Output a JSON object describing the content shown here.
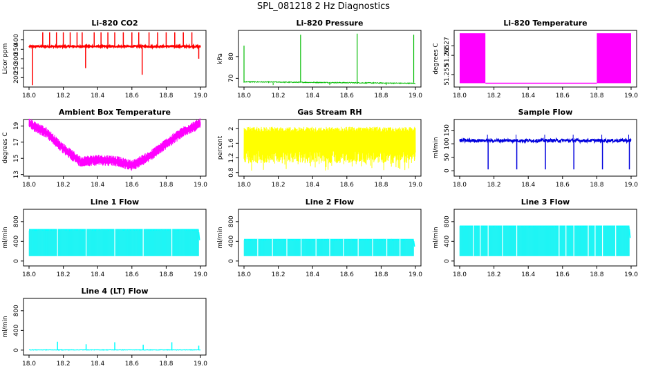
{
  "figure": {
    "title": "SPL_081218  2 Hz Diagnostics"
  },
  "chart_data": [
    {
      "type": "line",
      "title": "Li-820 CO2",
      "ylabel": "Licor ppm",
      "color": "#ff0000",
      "xlim": [
        18.0,
        19.0
      ],
      "ylim": [
        150,
        450
      ],
      "xticks": [
        "18.0",
        "18.2",
        "18.4",
        "18.6",
        "18.8",
        "19.0"
      ],
      "yticks": [
        200,
        250,
        300,
        350,
        400
      ],
      "series": [
        {
          "name": "co2",
          "baseline": 365,
          "noise": 8,
          "x": [
            18.0,
            18.02,
            18.05,
            18.08,
            18.12,
            18.16,
            18.2,
            18.24,
            18.28,
            18.31,
            18.33,
            18.38,
            18.42,
            18.46,
            18.5,
            18.55,
            18.6,
            18.64,
            18.66,
            18.7,
            18.75,
            18.8,
            18.85,
            18.9,
            18.95,
            18.99
          ],
          "y": [
            365,
            160,
            365,
            440,
            440,
            440,
            440,
            440,
            440,
            440,
            250,
            440,
            440,
            440,
            440,
            440,
            440,
            440,
            215,
            440,
            440,
            440,
            440,
            440,
            440,
            300
          ]
        }
      ]
    },
    {
      "type": "line",
      "title": "Li-820 Pressure",
      "ylabel": "kPa",
      "color": "#00bb00",
      "xlim": [
        18.0,
        19.0
      ],
      "ylim": [
        66,
        92
      ],
      "xticks": [
        "18.0",
        "18.2",
        "18.4",
        "18.6",
        "18.8",
        "19.0"
      ],
      "yticks": [
        70,
        80
      ],
      "series": [
        {
          "name": "pressure",
          "x": [
            18.0,
            18.05,
            18.2,
            18.33,
            18.4,
            18.5,
            18.6,
            18.66,
            18.75,
            18.9,
            18.99
          ],
          "y": [
            68.5,
            68.3,
            68.2,
            90.0,
            68.0,
            68.0,
            67.9,
            90.5,
            67.8,
            67.8,
            90.0
          ]
        }
      ]
    },
    {
      "type": "line",
      "title": "Li-820 Temperature",
      "ylabel": "degrees C",
      "color": "#ff00ff",
      "xlim": [
        18.0,
        19.0
      ],
      "ylim": [
        51.2485,
        51.278
      ],
      "xticks": [
        "18.0",
        "18.2",
        "18.4",
        "18.6",
        "18.8",
        "19.0"
      ],
      "yticks": [
        51.255,
        51.265,
        51.27
      ],
      "series": [
        {
          "name": "temperature",
          "x": [
            18.0,
            18.15,
            18.16,
            18.8,
            18.81,
            19.0
          ],
          "y_low": [
            51.2505,
            51.2505,
            51.2505,
            51.2505,
            51.2505,
            51.2505
          ],
          "y_high": [
            51.2765,
            51.2765,
            51.2505,
            51.2505,
            51.2765,
            51.2765
          ]
        }
      ]
    },
    {
      "type": "line",
      "title": "Ambient Box Temperature",
      "ylabel": "degrees C",
      "color": "#ff00ff",
      "xlim": [
        18.0,
        19.0
      ],
      "ylim": [
        12.8,
        19.8
      ],
      "xticks": [
        "18.0",
        "18.2",
        "18.4",
        "18.6",
        "18.8",
        "19.0"
      ],
      "yticks": [
        13,
        15,
        17,
        19
      ],
      "series": [
        {
          "name": "box_temp",
          "x": [
            18.0,
            18.1,
            18.2,
            18.3,
            18.4,
            18.5,
            18.6,
            18.7,
            18.8,
            18.9,
            19.0
          ],
          "y": [
            19.3,
            18.2,
            16.2,
            14.6,
            14.8,
            14.7,
            14.1,
            15.2,
            16.8,
            18.3,
            19.3
          ]
        }
      ]
    },
    {
      "type": "line",
      "title": "Gas Stream RH",
      "ylabel": "percent",
      "color": "#ffff00",
      "xlim": [
        18.0,
        19.0
      ],
      "ylim": [
        0.7,
        2.25
      ],
      "xticks": [
        "18.0",
        "18.2",
        "18.4",
        "18.6",
        "18.8",
        "19.0"
      ],
      "yticks": [
        0.8,
        1.2,
        1.6,
        2.0
      ],
      "series": [
        {
          "name": "rh",
          "low": 1.05,
          "high": 2.05
        }
      ]
    },
    {
      "type": "line",
      "title": "Sample Flow",
      "ylabel": "ml/min",
      "color": "#0000dd",
      "xlim": [
        18.0,
        19.0
      ],
      "ylim": [
        -20,
        190
      ],
      "xticks": [
        "18.0",
        "18.2",
        "18.4",
        "18.6",
        "18.8",
        "19.0"
      ],
      "yticks": [
        0,
        50,
        100,
        150
      ],
      "series": [
        {
          "name": "sample_flow",
          "baseline": 112,
          "dips_x": [
            18.166,
            18.333,
            18.5,
            18.666,
            18.833,
            18.99
          ],
          "dip_y": 5
        }
      ]
    },
    {
      "type": "line",
      "title": "Line 1 Flow",
      "ylabel": "ml/min",
      "color": "#00ffff",
      "xlim": [
        18.0,
        19.0
      ],
      "ylim": [
        -100,
        1050
      ],
      "xticks": [
        "18.0",
        "18.2",
        "18.4",
        "18.6",
        "18.8",
        "19.0"
      ],
      "yticks": [
        0,
        400,
        800
      ],
      "series": [
        {
          "name": "line1",
          "low": 100,
          "high": 650,
          "gaps_x": [
            18.166,
            18.333,
            18.5,
            18.666,
            18.833
          ]
        }
      ]
    },
    {
      "type": "line",
      "title": "Line 2 Flow",
      "ylabel": "ml/min",
      "color": "#00ffff",
      "xlim": [
        18.0,
        19.0
      ],
      "ylim": [
        -100,
        1050
      ],
      "xticks": [
        "18.0",
        "18.2",
        "18.4",
        "18.6",
        "18.8",
        "19.0"
      ],
      "yticks": [
        0,
        400,
        800
      ],
      "series": [
        {
          "name": "line2",
          "low": 100,
          "high": 450,
          "gaps_x": [
            18.08,
            18.166,
            18.25,
            18.333,
            18.42,
            18.5,
            18.58,
            18.666,
            18.75,
            18.833,
            18.91
          ]
        }
      ]
    },
    {
      "type": "line",
      "title": "Line 3 Flow",
      "ylabel": "ml/min",
      "color": "#00ffff",
      "xlim": [
        18.0,
        19.0
      ],
      "ylim": [
        -100,
        1050
      ],
      "xticks": [
        "18.0",
        "18.2",
        "18.4",
        "18.6",
        "18.8",
        "19.0"
      ],
      "yticks": [
        0,
        400,
        800
      ],
      "series": [
        {
          "name": "line3",
          "low": 100,
          "high": 720,
          "gaps_x": [
            18.08,
            18.12,
            18.166,
            18.25,
            18.333,
            18.58,
            18.62,
            18.666,
            18.75,
            18.79,
            18.833,
            18.91
          ]
        }
      ]
    },
    {
      "type": "line",
      "title": "Line 4 (LT) Flow",
      "ylabel": "ml/min",
      "color": "#00ffff",
      "xlim": [
        18.0,
        19.0
      ],
      "ylim": [
        -100,
        1050
      ],
      "xticks": [
        "18.0",
        "18.2",
        "18.4",
        "18.6",
        "18.8",
        "19.0"
      ],
      "yticks": [
        0,
        400,
        800
      ],
      "series": [
        {
          "name": "line4",
          "baseline": 5,
          "spikes_x": [
            18.166,
            18.333,
            18.5,
            18.666,
            18.833,
            18.99
          ],
          "spikes_y": [
            170,
            120,
            160,
            110,
            160,
            90
          ]
        }
      ]
    }
  ]
}
